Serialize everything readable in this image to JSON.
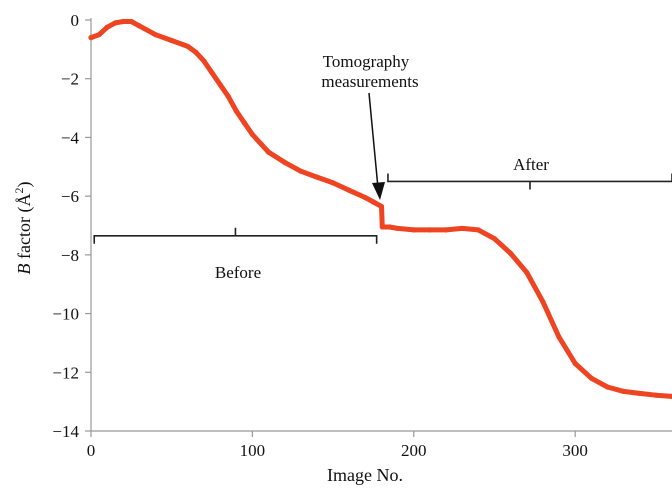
{
  "chart_data": {
    "type": "line",
    "xlabel": "Image No.",
    "ylabel_italic": "B",
    "ylabel_rest": " factor (Å",
    "ylabel_sup": "2",
    "ylabel_close": ")",
    "xlim": [
      0,
      360
    ],
    "ylim": [
      -14,
      0
    ],
    "x_ticks": [
      0,
      100,
      200,
      300
    ],
    "x_tick_labels": [
      "0",
      "100",
      "200",
      "300"
    ],
    "y_ticks": [
      0,
      -2,
      -4,
      -6,
      -8,
      -10,
      -12,
      -14
    ],
    "y_tick_labels": [
      "0",
      "−2",
      "−4",
      "−6",
      "−8",
      "−10",
      "−12",
      "−14"
    ],
    "series": [
      {
        "color": "#ee4422",
        "x": [
          0,
          5,
          10,
          15,
          20,
          25,
          30,
          40,
          50,
          60,
          65,
          70,
          75,
          80,
          85,
          90,
          95,
          100,
          110,
          120,
          130,
          140,
          150,
          160,
          170,
          175,
          180,
          180.5,
          185,
          190,
          200,
          210,
          220,
          230,
          240,
          250,
          260,
          270,
          280,
          290,
          300,
          310,
          320,
          330,
          340,
          350,
          360
        ],
        "y": [
          -0.6,
          -0.5,
          -0.25,
          -0.1,
          -0.05,
          -0.05,
          -0.2,
          -0.5,
          -0.7,
          -0.9,
          -1.1,
          -1.4,
          -1.8,
          -2.2,
          -2.6,
          -3.1,
          -3.5,
          -3.9,
          -4.5,
          -4.85,
          -5.15,
          -5.35,
          -5.55,
          -5.8,
          -6.05,
          -6.2,
          -6.35,
          -7.05,
          -7.05,
          -7.1,
          -7.15,
          -7.15,
          -7.15,
          -7.1,
          -7.15,
          -7.45,
          -7.95,
          -8.6,
          -9.6,
          -10.8,
          -11.7,
          -12.2,
          -12.5,
          -12.65,
          -12.72,
          -12.78,
          -12.82
        ]
      }
    ],
    "annotations": {
      "tomography_line1": "Tomography",
      "tomography_line2": "measurements",
      "before": "Before",
      "after": "After"
    },
    "brackets": {
      "before": {
        "x_start": 2,
        "x_end": 177,
        "y": -7.35
      },
      "after": {
        "x_start": 184,
        "x_end": 360,
        "y": -5.5
      }
    },
    "arrow_target": {
      "x": 178,
      "y": -6.35
    }
  }
}
